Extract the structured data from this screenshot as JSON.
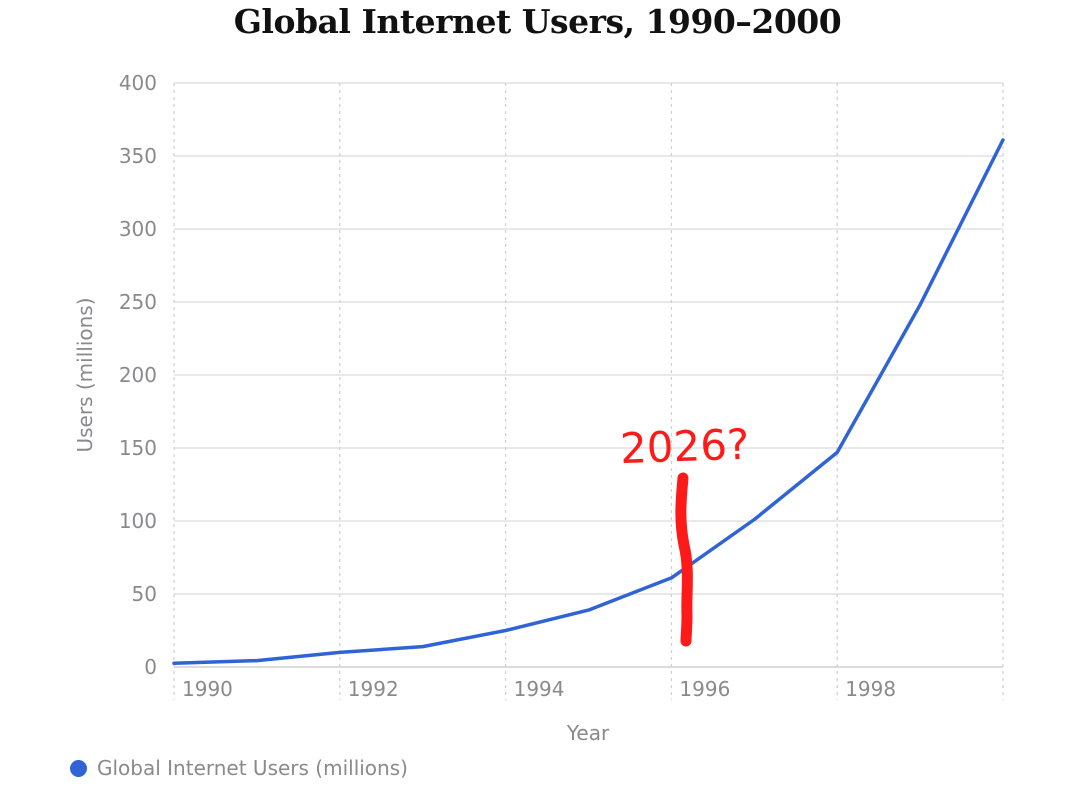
{
  "chart_data": {
    "type": "line",
    "title": "Global Internet Users, 1990–2000",
    "xlabel": "Year",
    "ylabel": "Users (millions)",
    "x": [
      1990,
      1991,
      1992,
      1993,
      1994,
      1995,
      1996,
      1997,
      1998,
      1999,
      2000
    ],
    "xticks": [
      "1990",
      "1992",
      "1994",
      "1996",
      "1998"
    ],
    "yticks": [
      "0",
      "50",
      "100",
      "150",
      "200",
      "250",
      "300",
      "350",
      "400"
    ],
    "ylim": [
      0,
      400
    ],
    "xlim": [
      1990,
      2000
    ],
    "grid": true,
    "legend_position": "bottom-left",
    "series": [
      {
        "name": "Global Internet Users (millions)",
        "color": "#2f63d6",
        "values": [
          2.6,
          4.4,
          10,
          14,
          25,
          39,
          61,
          101,
          147,
          248,
          361
        ]
      }
    ],
    "annotation": {
      "text": "2026?",
      "color": "#ff1a1a",
      "near_x": 1996
    }
  }
}
